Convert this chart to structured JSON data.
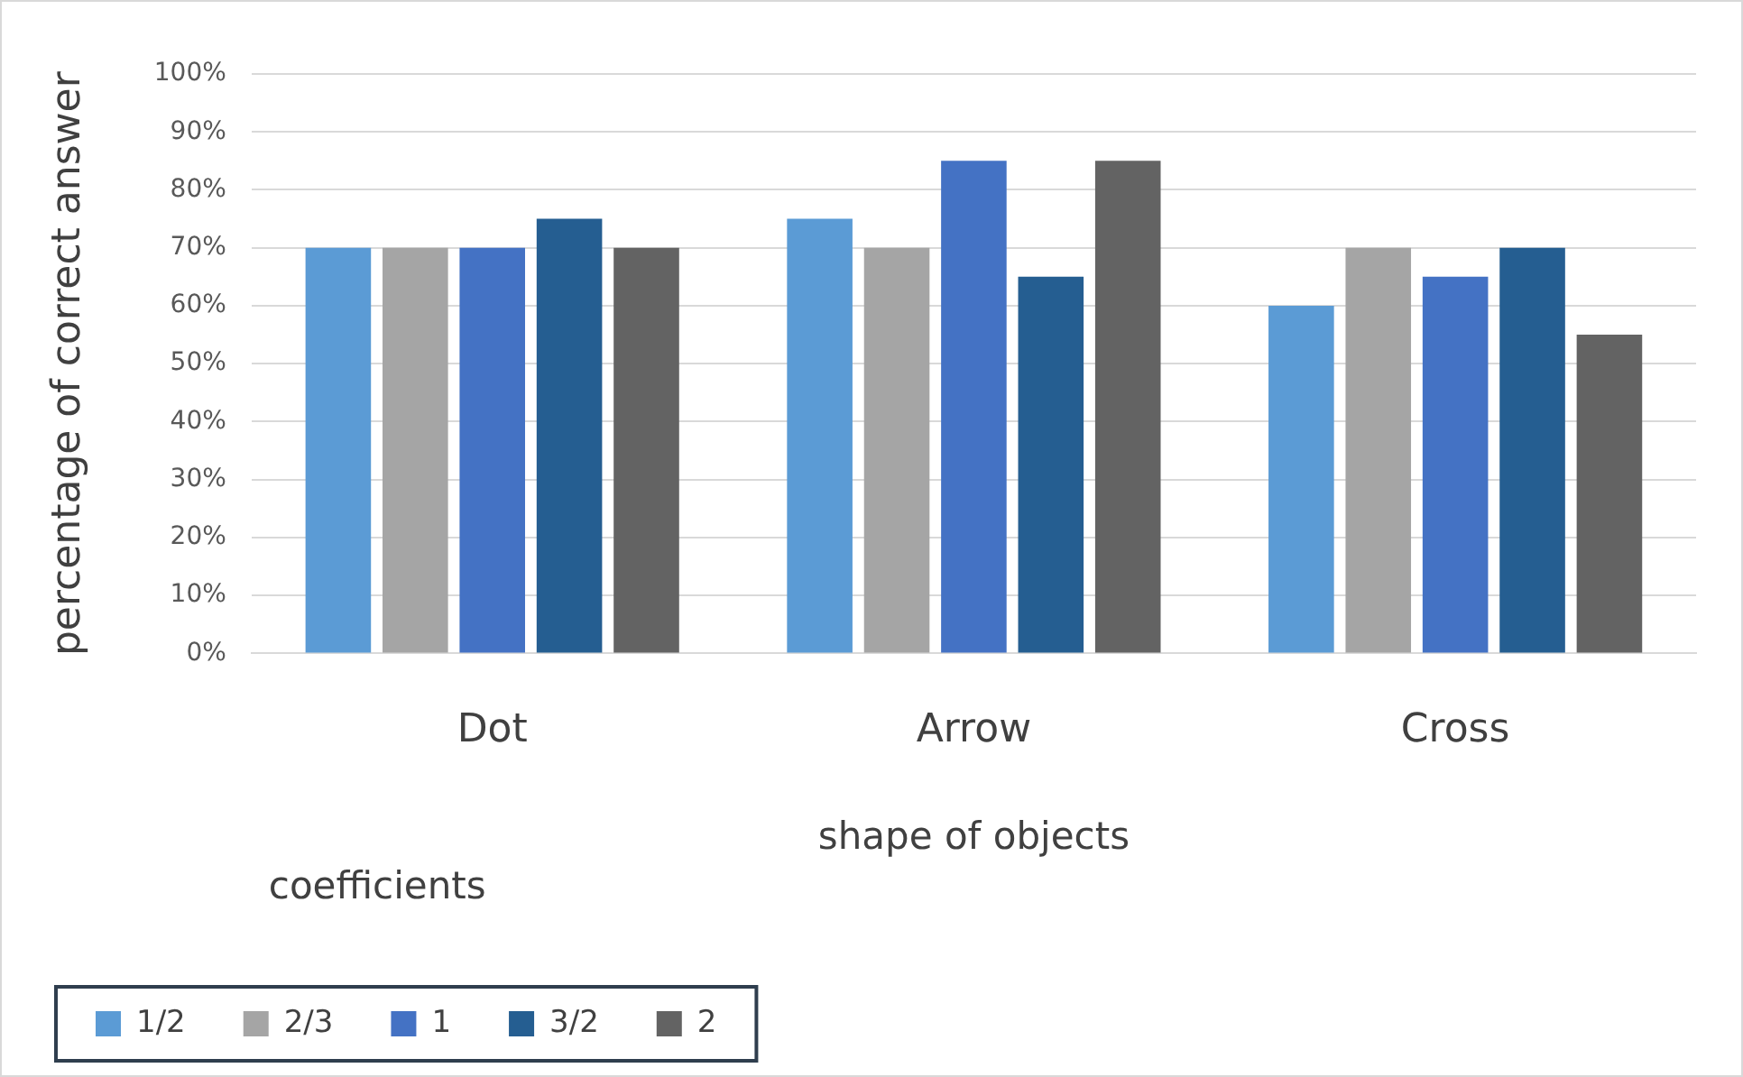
{
  "chart_data": {
    "type": "bar",
    "xlabel": "shape of objects",
    "ylabel": "percentage of correct answer",
    "legend_title": "coefficients",
    "categories": [
      "Dot",
      "Arrow",
      "Cross"
    ],
    "series": [
      {
        "name": "1/2",
        "color": "#5b9bd5",
        "values": [
          70,
          75,
          60
        ]
      },
      {
        "name": "2/3",
        "color": "#a5a5a5",
        "values": [
          70,
          70,
          70
        ]
      },
      {
        "name": "1",
        "color": "#4472c4",
        "values": [
          70,
          85,
          65
        ]
      },
      {
        "name": "3/2",
        "color": "#255e91",
        "values": [
          75,
          65,
          70
        ]
      },
      {
        "name": "2",
        "color": "#636363",
        "values": [
          70,
          85,
          55
        ]
      }
    ],
    "ylim": [
      0,
      100
    ],
    "yticks": [
      {
        "value": 0,
        "label": "0%"
      },
      {
        "value": 10,
        "label": "10%"
      },
      {
        "value": 20,
        "label": "20%"
      },
      {
        "value": 30,
        "label": "30%"
      },
      {
        "value": 40,
        "label": "40%"
      },
      {
        "value": 50,
        "label": "50%"
      },
      {
        "value": 60,
        "label": "60%"
      },
      {
        "value": 70,
        "label": "70%"
      },
      {
        "value": 80,
        "label": "80%"
      },
      {
        "value": 90,
        "label": "90%"
      },
      {
        "value": 100,
        "label": "100%"
      }
    ],
    "grid": "y",
    "legend": "bottom left"
  }
}
